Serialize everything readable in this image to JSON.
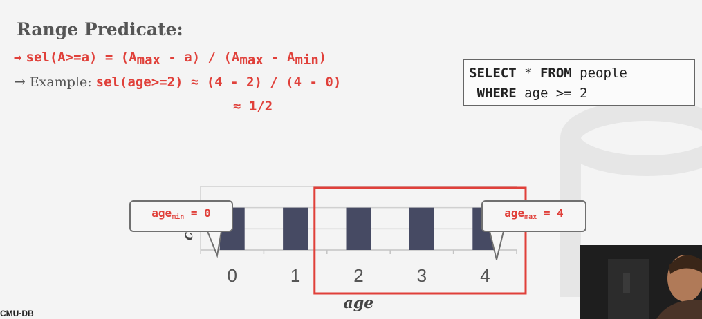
{
  "slide": {
    "title": "Range Predicate:",
    "formula": {
      "arrow": "→",
      "lhs": "sel(A>=a) = (A",
      "sub1": "max",
      "mid1": " - a) / (A",
      "sub2": "max",
      "mid2": " - A",
      "sub3": "min",
      "end": ")"
    },
    "example": {
      "arrow": "→",
      "label": "Example: ",
      "expr": "sel(age>=2) ≈ (4 - 2) / (4 - 0)",
      "result": "≈ 1/2"
    },
    "sql": {
      "kw_select": "SELECT",
      "select_rest": " * ",
      "kw_from": "FROM",
      "from_rest": " people",
      "kw_where": "WHERE",
      "where_rest": " age >= 2"
    },
    "callouts": {
      "min_prefix": "age",
      "min_sub": "min",
      "min_suffix": " = 0",
      "max_prefix": "age",
      "max_sub": "max",
      "max_suffix": " = 4"
    },
    "footer": "CMU·DB"
  },
  "chart_data": {
    "type": "bar",
    "categories": [
      "0",
      "1",
      "2",
      "3",
      "4"
    ],
    "values": [
      1,
      1,
      1,
      1,
      1
    ],
    "xlabel": "age",
    "ylabel": "c",
    "highlight_range": [
      "2",
      "4"
    ],
    "colors": {
      "bar": "#464a63",
      "highlight": "#e0403a",
      "grid": "#d0d0d0"
    }
  }
}
